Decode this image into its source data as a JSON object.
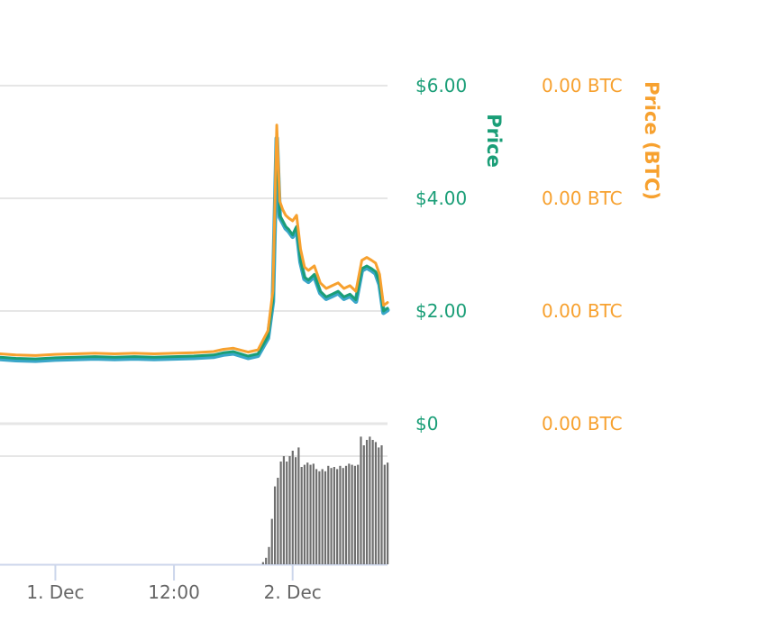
{
  "colors": {
    "usd_line": "#1a9e77",
    "usd_line_shadow": "#3aa6c9",
    "btc_line": "#f7a12f",
    "volume_bar": "#6f6f6f",
    "grid": "#dddddd",
    "axis_usd_text": "#1a9e77",
    "axis_btc_text": "#f7a12f",
    "axis_x_text": "#666666"
  },
  "chart_data": {
    "type": "line",
    "title": "",
    "y_axis_price": {
      "label": "Price",
      "ticks": [
        {
          "value": 6,
          "label": "$6.00"
        },
        {
          "value": 4,
          "label": "$4.00"
        },
        {
          "value": 2,
          "label": "$2.00"
        },
        {
          "value": 0,
          "label": "$0"
        }
      ],
      "ylim": [
        0,
        6
      ]
    },
    "y_axis_btc": {
      "label": "Price (BTC)",
      "tick_labels": [
        "0.00 BTC",
        "0.00 BTC",
        "0.00 BTC",
        "0.00 BTC"
      ]
    },
    "x_axis": {
      "tick_labels": [
        "1. Dec",
        "12:00",
        "2. Dec"
      ],
      "tick_hours": [
        0,
        12,
        24
      ]
    },
    "xlim_hours": [
      -5.6,
      33.6
    ],
    "grid": true,
    "series": [
      {
        "key": "usd",
        "x_hours": [
          -5.6,
          -4,
          -2,
          0,
          2,
          4,
          6,
          8,
          10,
          12,
          14,
          16,
          17,
          18,
          19.5,
          20.5,
          21.5,
          22,
          22.4,
          22.7,
          23,
          23.3,
          23.6,
          24,
          24.4,
          24.8,
          25.2,
          25.6,
          26.2,
          26.8,
          27.4,
          28,
          28.6,
          29.2,
          29.8,
          30.4,
          31,
          31.5,
          32,
          32.4,
          32.8,
          33.2,
          33.6
        ],
        "values": [
          1.18,
          1.16,
          1.15,
          1.17,
          1.18,
          1.19,
          1.18,
          1.19,
          1.18,
          1.19,
          1.2,
          1.22,
          1.26,
          1.28,
          1.2,
          1.24,
          1.55,
          2.2,
          5.1,
          3.7,
          3.6,
          3.5,
          3.45,
          3.35,
          3.5,
          2.9,
          2.6,
          2.55,
          2.65,
          2.35,
          2.25,
          2.3,
          2.35,
          2.25,
          2.3,
          2.2,
          2.75,
          2.8,
          2.75,
          2.7,
          2.5,
          2.0,
          2.05
        ]
      },
      {
        "key": "btc",
        "x_hours": [
          -5.6,
          -4,
          -2,
          0,
          2,
          4,
          6,
          8,
          10,
          12,
          14,
          16,
          17,
          18,
          19.5,
          20.5,
          21.5,
          22,
          22.4,
          22.7,
          23,
          23.3,
          23.6,
          24,
          24.4,
          24.8,
          25.2,
          25.6,
          26.2,
          26.8,
          27.4,
          28,
          28.6,
          29.2,
          29.8,
          30.4,
          31,
          31.5,
          32,
          32.4,
          32.8,
          33.2,
          33.6
        ],
        "values": [
          1.24,
          1.22,
          1.21,
          1.23,
          1.24,
          1.25,
          1.24,
          1.25,
          1.24,
          1.25,
          1.26,
          1.28,
          1.32,
          1.34,
          1.27,
          1.31,
          1.65,
          2.35,
          5.3,
          3.95,
          3.8,
          3.7,
          3.65,
          3.6,
          3.7,
          3.1,
          2.78,
          2.72,
          2.8,
          2.5,
          2.4,
          2.45,
          2.5,
          2.4,
          2.45,
          2.35,
          2.9,
          2.95,
          2.9,
          2.85,
          2.65,
          2.1,
          2.15
        ]
      }
    ],
    "volume": {
      "x_hours": [
        21.0,
        21.3,
        21.6,
        21.9,
        22.2,
        22.5,
        22.8,
        23.1,
        23.4,
        23.7,
        24.0,
        24.3,
        24.6,
        24.9,
        25.2,
        25.5,
        25.8,
        26.1,
        26.4,
        26.7,
        27.0,
        27.3,
        27.6,
        27.9,
        28.2,
        28.5,
        28.8,
        29.1,
        29.4,
        29.7,
        30.0,
        30.3,
        30.6,
        30.9,
        31.2,
        31.5,
        31.8,
        32.1,
        32.4,
        32.7,
        33.0,
        33.3,
        33.6
      ],
      "values": [
        0.02,
        0.06,
        0.16,
        0.42,
        0.72,
        0.8,
        0.95,
        1.0,
        0.95,
        1.0,
        1.05,
        0.99,
        1.08,
        0.9,
        0.92,
        0.94,
        0.92,
        0.93,
        0.88,
        0.86,
        0.88,
        0.86,
        0.91,
        0.89,
        0.9,
        0.88,
        0.91,
        0.89,
        0.91,
        0.93,
        0.92,
        0.91,
        0.92,
        1.18,
        1.1,
        1.15,
        1.18,
        1.15,
        1.13,
        1.08,
        1.1,
        0.92,
        0.94
      ],
      "gridline_value": 1.0
    }
  }
}
